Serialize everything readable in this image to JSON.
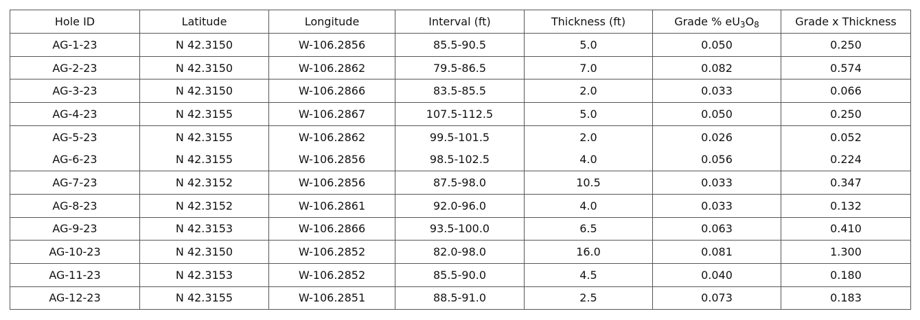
{
  "table": {
    "headers": [
      "Hole ID",
      "Latitude",
      "Longitude",
      "Interval (ft)",
      "Thickness (ft)",
      [
        "Grade % eU",
        "3",
        "O",
        "8"
      ],
      "Grade x Thickness"
    ],
    "rows": [
      [
        "AG-1-23",
        "N 42.3150",
        "W-106.2856",
        "85.5-90.5",
        "5.0",
        "0.050",
        "0.250"
      ],
      [
        "AG-2-23",
        "N 42.3150",
        "W-106.2862",
        "79.5-86.5",
        "7.0",
        "0.082",
        "0.574"
      ],
      [
        "AG-3-23",
        "N 42.3150",
        "W-106.2866",
        "83.5-85.5",
        "2.0",
        "0.033",
        "0.066"
      ],
      [
        "AG-4-23",
        "N 42.3155",
        "W-106.2867",
        "107.5-112.5",
        "5.0",
        "0.050",
        "0.250"
      ],
      [
        "AG-5-23",
        "N 42.3155",
        "W-106.2862",
        "99.5-101.5",
        "2.0",
        "0.026",
        "0.052"
      ],
      [
        "AG-6-23",
        "N 42.3155",
        "W-106.2856",
        "98.5-102.5",
        "4.0",
        "0.056",
        "0.224"
      ],
      [
        "AG-7-23",
        "N 42.3152",
        "W-106.2856",
        "87.5-98.0",
        "10.5",
        "0.033",
        "0.347"
      ],
      [
        "AG-8-23",
        "N 42.3152",
        "W-106.2861",
        "92.0-96.0",
        "4.0",
        "0.033",
        "0.132"
      ],
      [
        "AG-9-23",
        "N 42.3153",
        "W-106.2866",
        "93.5-100.0",
        "6.5",
        "0.063",
        "0.410"
      ],
      [
        "AG-10-23",
        "N 42.3150",
        "W-106.2852",
        "82.0-98.0",
        "16.0",
        "0.081",
        "1.300"
      ],
      [
        "AG-11-23",
        "N 42.3153",
        "W-106.2852",
        "85.5-90.0",
        "4.5",
        "0.040",
        "0.180"
      ],
      [
        "AG-12-23",
        "N 42.3155",
        "W-106.2851",
        "88.5-91.0",
        "2.5",
        "0.073",
        "0.183"
      ]
    ]
  }
}
